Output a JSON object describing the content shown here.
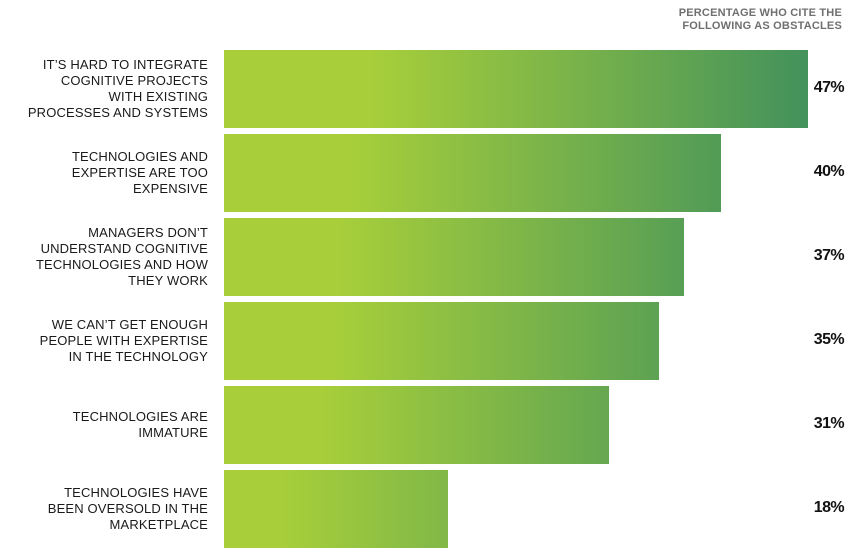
{
  "header": {
    "line1": "PERCENTAGE WHO CITE THE",
    "line2": "FOLLOWING AS OBSTACLES"
  },
  "colors": {
    "bar_start": "#a8cf3a",
    "bar_end": "#43925c"
  },
  "chart_data": {
    "type": "bar",
    "orientation": "horizontal",
    "xlabel": "PERCENTAGE WHO CITE THE FOLLOWING AS OBSTACLES",
    "xlim": [
      0,
      47
    ],
    "grid": false,
    "categories": [
      "IT’S HARD TO INTEGRATE COGNITIVE PROJECTS WITH EXISTING PROCESSES AND SYSTEMS",
      "TECHNOLOGIES AND EXPERTISE ARE TOO EXPENSIVE",
      "MANAGERS DON’T UNDERSTAND COGNITIVE TECHNOLOGIES AND HOW THEY WORK",
      "WE CAN’T GET ENOUGH PEOPLE WITH EXPERTISE IN THE TECHNOLOGY",
      "TECHNOLOGIES ARE IMMATURE",
      "TECHNOLOGIES HAVE BEEN OVERSOLD IN THE MARKETPLACE"
    ],
    "category_lines": [
      [
        "IT’S HARD TO INTEGRATE",
        "COGNITIVE PROJECTS",
        "WITH EXISTING",
        "PROCESSES AND SYSTEMS"
      ],
      [
        "TECHNOLOGIES AND",
        "EXPERTISE ARE TOO",
        "EXPENSIVE"
      ],
      [
        "MANAGERS DON’T",
        "UNDERSTAND COGNITIVE",
        "TECHNOLOGIES AND HOW",
        "THEY WORK"
      ],
      [
        "WE CAN’T GET ENOUGH",
        "PEOPLE WITH EXPERTISE",
        "IN THE TECHNOLOGY"
      ],
      [
        "TECHNOLOGIES ARE",
        "IMMATURE"
      ],
      [
        "TECHNOLOGIES HAVE",
        "BEEN OVERSOLD IN THE",
        "MARKETPLACE"
      ]
    ],
    "values": [
      47,
      40,
      37,
      35,
      31,
      18
    ],
    "value_labels": [
      "47%",
      "40%",
      "37%",
      "35%",
      "31%",
      "18%"
    ]
  }
}
